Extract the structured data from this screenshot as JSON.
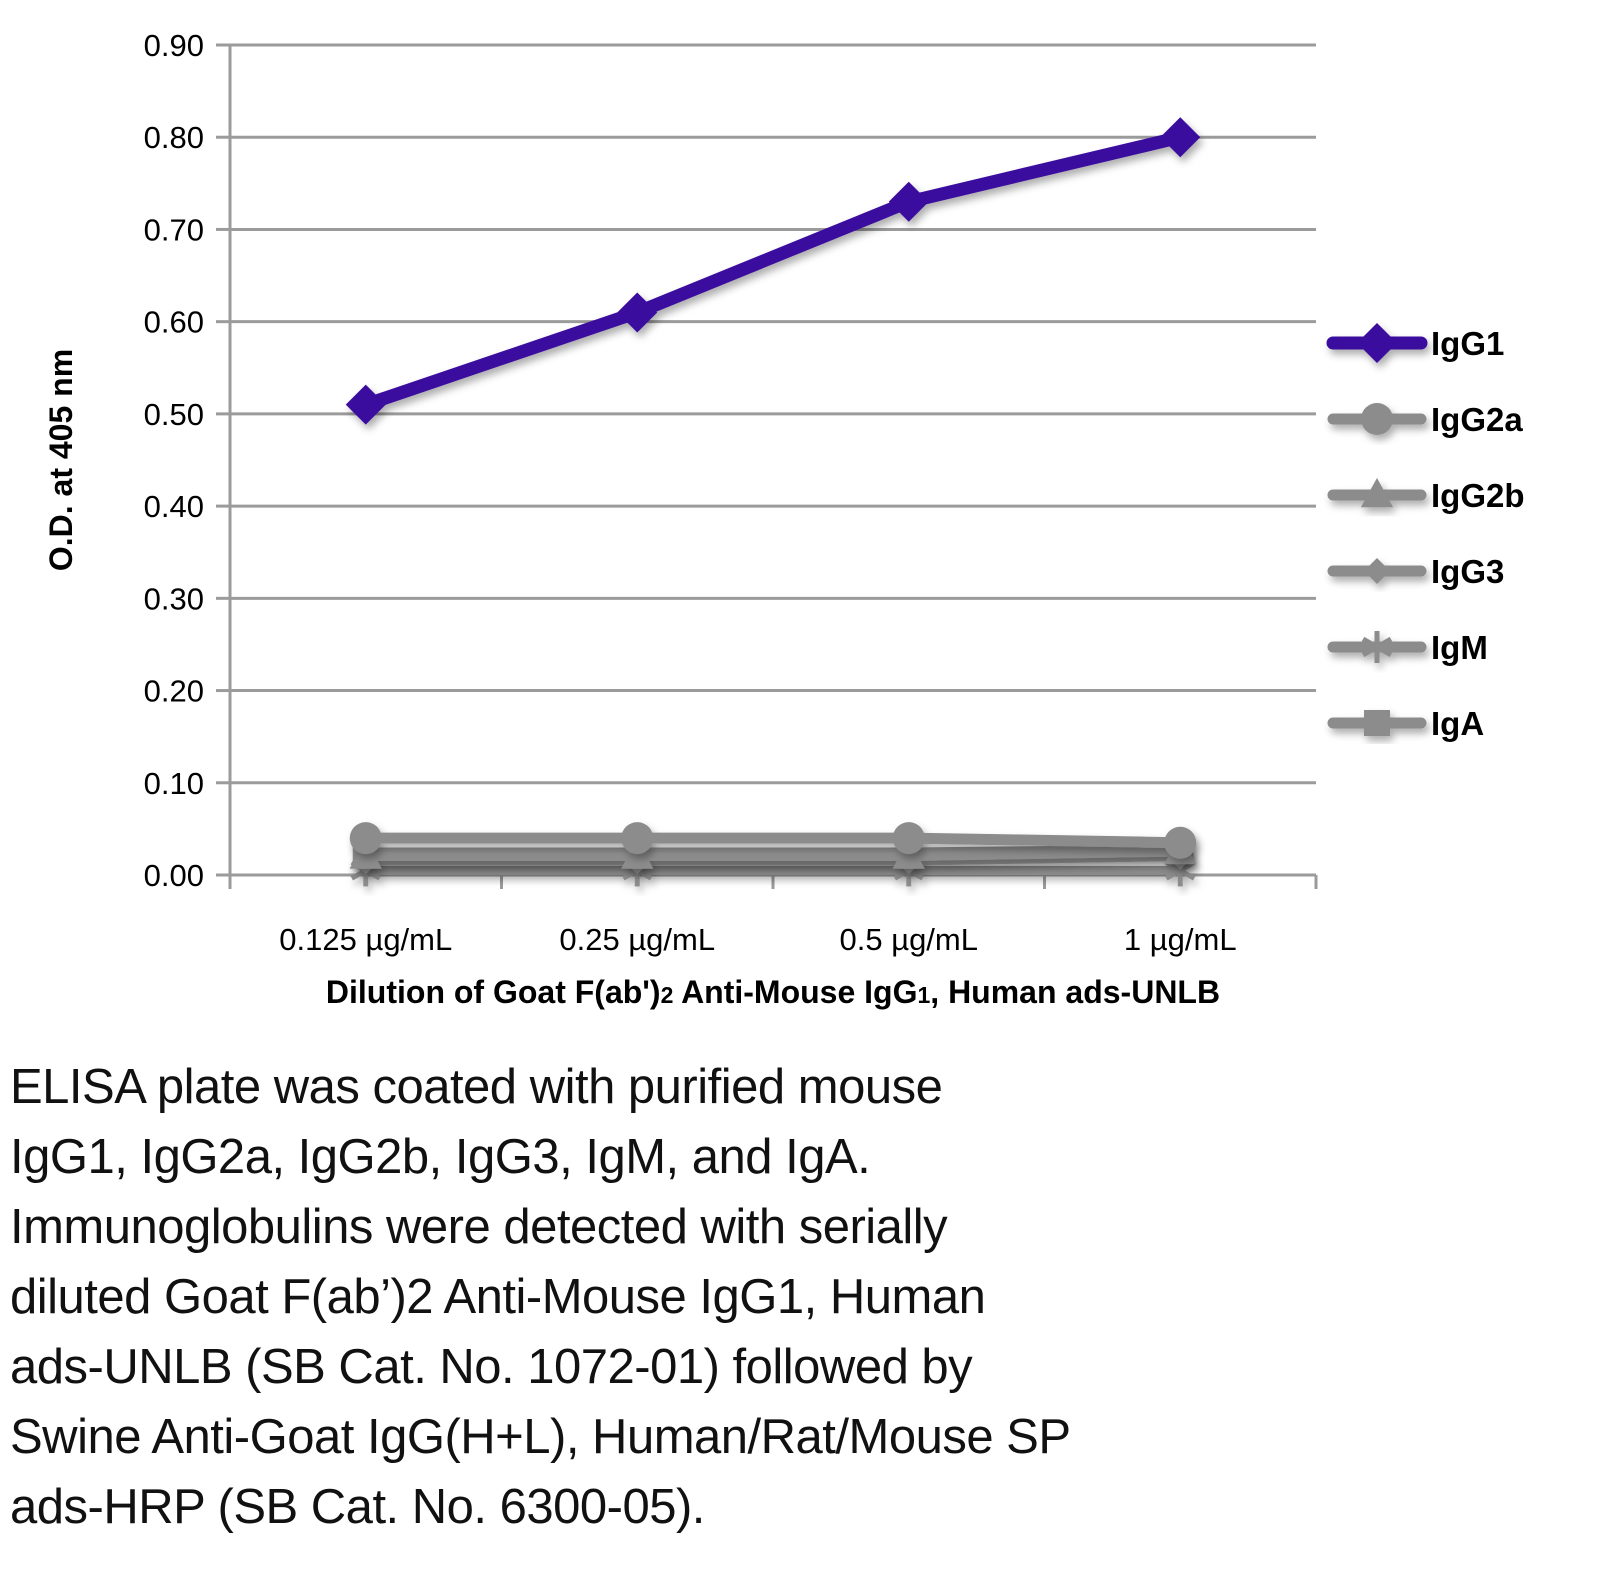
{
  "chart_data": {
    "type": "line",
    "title": "",
    "x_categories": [
      "0.125 µg/mL",
      "0.25 µg/mL",
      "0.5 µg/mL",
      "1 µg/mL"
    ],
    "xlabel_text": "Dilution of Goat F(ab')2 Anti-Mouse IgG1, Human ads-UNLB",
    "xlabel_segments": [
      {
        "text": "Dilution of Goat F(ab')",
        "small": false
      },
      {
        "text": "2",
        "small": true
      },
      {
        "text": " Anti-Mouse IgG",
        "small": false
      },
      {
        "text": "1",
        "small": true
      },
      {
        "text": ", Human ads-UNLB",
        "small": false
      }
    ],
    "ylabel": "O.D. at 405 nm",
    "ylim": [
      0.0,
      0.9
    ],
    "ytick_step": 0.1,
    "ytick_labels": [
      "0.00",
      "0.10",
      "0.20",
      "0.30",
      "0.40",
      "0.50",
      "0.60",
      "0.70",
      "0.80",
      "0.90"
    ],
    "grid": true,
    "legend_position": "right",
    "series": [
      {
        "name": "IgG1",
        "marker": "diamond",
        "color": "#3B0B9E",
        "line_width": 13,
        "marker_size": 20,
        "values": [
          0.51,
          0.61,
          0.73,
          0.8
        ]
      },
      {
        "name": "IgG2a",
        "marker": "circle",
        "color": "#8C8C8C",
        "line_width": 11,
        "marker_size": 16,
        "values": [
          0.04,
          0.04,
          0.04,
          0.035
        ]
      },
      {
        "name": "IgG2b",
        "marker": "triangle",
        "color": "#8C8C8C",
        "line_width": 9,
        "marker_size": 17,
        "values": [
          0.02,
          0.02,
          0.02,
          0.025
        ]
      },
      {
        "name": "IgG3",
        "marker": "diamond",
        "color": "#8C8C8C",
        "line_width": 9,
        "marker_size": 13,
        "values": [
          0.015,
          0.015,
          0.015,
          0.02
        ]
      },
      {
        "name": "IgM",
        "marker": "asterisk",
        "color": "#8C8C8C",
        "line_width": 9,
        "marker_size": 16,
        "values": [
          0.005,
          0.005,
          0.005,
          0.005
        ]
      },
      {
        "name": "IgA",
        "marker": "square",
        "color": "#8C8C8C",
        "line_width": 9,
        "marker_size": 13,
        "values": [
          0.025,
          0.025,
          0.025,
          0.028
        ]
      }
    ]
  },
  "caption_lines": [
    "ELISA plate was coated with purified mouse",
    "IgG1, IgG2a, IgG2b, IgG3, IgM, and IgA.",
    "Immunoglobulins were detected with serially",
    "diluted Goat F(ab’)2 Anti-Mouse IgG1, Human",
    "ads-UNLB (SB Cat. No. 1072-01) followed by",
    "Swine Anti-Goat IgG(H+L), Human/Rat/Mouse SP",
    "ads-HRP (SB Cat. No. 6300-05)."
  ],
  "colors": {
    "accent_purple": "#3B0B9E",
    "series_gray": "#8C8C8C",
    "grid_gray": "#9B9B9B",
    "text_black": "#000000"
  }
}
